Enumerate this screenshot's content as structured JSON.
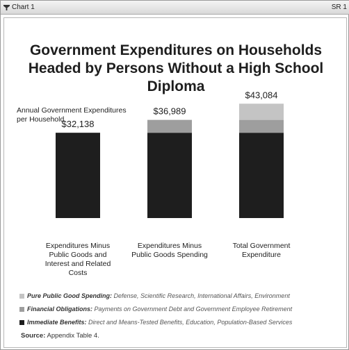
{
  "window": {
    "tab_label": "Chart 1",
    "tag": "SR 1"
  },
  "chart_data": {
    "type": "bar",
    "stacked": true,
    "title": "Government Expenditures on Households Headed by Persons Without a High School Diploma",
    "ylabel": "Annual Government Expenditures per Household",
    "categories": [
      "Expenditures Minus Public Goods and Interest and Related Costs",
      "Expenditures Minus Public Goods Spending",
      "Total Government Expenditure"
    ],
    "totals": [
      "$32,138",
      "$36,989",
      "$43,084"
    ],
    "series": [
      {
        "name": "Immediate Benefits",
        "values": [
          32138,
          32138,
          32138
        ],
        "color": "#1e1e1e"
      },
      {
        "name": "Financial Obligations",
        "values": [
          0,
          4851,
          4851
        ],
        "color": "#9e9e9e"
      },
      {
        "name": "Pure Public Good Spending",
        "values": [
          0,
          0,
          6095
        ],
        "color": "#c4c4c4"
      }
    ],
    "ylim": [
      0,
      45000
    ],
    "grid": false
  },
  "legend": [
    {
      "name": "Pure Public Good Spending",
      "desc": "Defense, Scientific Research, International Affairs, Environment",
      "color": "#c4c4c4"
    },
    {
      "name": "Financial Obligations",
      "desc": "Payments on Government Debt and Government Employee Retirement",
      "color": "#9e9e9e"
    },
    {
      "name": "Immediate Benefits",
      "desc": "Direct and Means-Tested Benefits, Education, Population-Based Services",
      "color": "#1e1e1e"
    }
  ],
  "source": {
    "label": "Source:",
    "text": "Appendix Table 4."
  }
}
